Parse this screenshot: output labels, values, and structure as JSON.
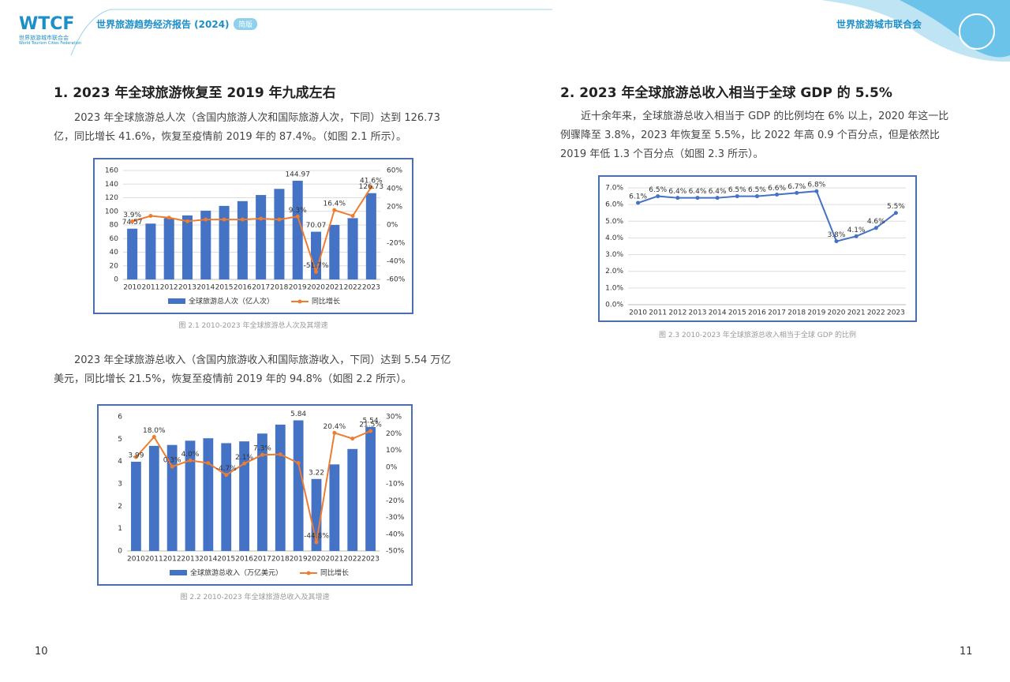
{
  "header": {
    "logo": "WTCF",
    "logo_cn": "世界旅游城市联合会",
    "logo_en": "World Tourism Cities Federation",
    "report": "世界旅游趋势经济报告 (2024)",
    "badge": "简版",
    "org": "世界旅游城市联合会"
  },
  "sections": [
    {
      "heading": "1. 2023 年全球旅游恢复至 2019 年九成左右",
      "paragraphs": [
        "2023 年全球旅游总人次（含国内旅游人次和国际旅游人次，下同）达到 126.73 亿，同比增长 41.6%，恢复至疫情前 2019 年的 87.4%。（如图 2.1 所示）。",
        "2023 年全球旅游总收入（含国内旅游收入和国际旅游收入，下同）达到 5.54 万亿美元，同比增长 21.5%，恢复至疫情前 2019 年的 94.8%（如图 2.2 所示）。"
      ]
    },
    {
      "heading": "2. 2023 年全球旅游总收入相当于全球 GDP 的 5.5%",
      "paragraphs": [
        "近十余年来，全球旅游总收入相当于 GDP 的比例均在 6% 以上，2020 年这一比例骤降至 3.8%，2023 年恢复至 5.5%，比 2022 年高 0.9 个百分点，但是依然比 2019 年低 1.3 个百分点（如图 2.3 所示）。"
      ]
    }
  ],
  "chart_data": [
    {
      "type": "combo",
      "caption": "图 2.1 2010-2023 年全球旅游总人次及其增速",
      "categories": [
        "2010",
        "2011",
        "2012",
        "2013",
        "2014",
        "2015",
        "2016",
        "2017",
        "2018",
        "2019",
        "2020",
        "2021",
        "2022",
        "2023"
      ],
      "series": [
        {
          "name": "全球旅游总人次（亿人次）",
          "type": "bar",
          "color": "#4472c4",
          "values": [
            74.57,
            82,
            90,
            94,
            101,
            108,
            115,
            124,
            133,
            144.97,
            70.07,
            80,
            90,
            126.73
          ],
          "value_labels": [
            "74.57",
            null,
            null,
            null,
            null,
            null,
            null,
            null,
            null,
            "144.97",
            "70.07",
            null,
            null,
            "126.73"
          ]
        },
        {
          "name": "同比增长",
          "type": "line",
          "axis": "y2",
          "color": "#ed7d31",
          "values": [
            3.9,
            10,
            8,
            4,
            6,
            6,
            6,
            7,
            6,
            9.3,
            -51.7,
            16.4,
            10,
            41.6
          ],
          "value_labels": [
            "3.9%",
            null,
            null,
            null,
            null,
            null,
            null,
            null,
            null,
            "9.3%",
            "-51.7%",
            "16.4%",
            null,
            "41.6%"
          ]
        }
      ],
      "ylim": [
        0,
        160
      ],
      "yticks": [
        0,
        20,
        40,
        60,
        80,
        100,
        120,
        140,
        160
      ],
      "y2lim": [
        -60,
        60
      ],
      "y2ticks": [
        {
          "value": -60,
          "label": "-60%"
        },
        {
          "value": -40,
          "label": "-40%"
        },
        {
          "value": -20,
          "label": "-20%"
        },
        {
          "value": 0,
          "label": "0%"
        },
        {
          "value": 20,
          "label": "20%"
        },
        {
          "value": 40,
          "label": "40%"
        },
        {
          "value": 60,
          "label": "60%"
        }
      ],
      "grid": true,
      "legend": "bottom"
    },
    {
      "type": "combo",
      "caption": "图 2.2 2010-2023 年全球旅游总收入及其增速",
      "categories": [
        "2010",
        "2011",
        "2012",
        "2013",
        "2014",
        "2015",
        "2016",
        "2017",
        "2018",
        "2019",
        "2020",
        "2021",
        "2022",
        "2023"
      ],
      "series": [
        {
          "name": "全球旅游总收入（万亿美元）",
          "type": "bar",
          "color": "#4472c4",
          "values": [
            3.99,
            4.7,
            4.74,
            4.93,
            5.04,
            4.82,
            4.9,
            5.25,
            5.65,
            5.84,
            3.22,
            3.87,
            4.56,
            5.54
          ],
          "value_labels": [
            "3.99",
            null,
            null,
            null,
            null,
            null,
            null,
            null,
            null,
            "5.84",
            "3.22",
            null,
            null,
            "5.54"
          ]
        },
        {
          "name": "同比增长",
          "type": "line",
          "axis": "y2",
          "color": "#ed7d31",
          "values": [
            6,
            18.0,
            0.3,
            4.0,
            2.4,
            -4.7,
            2.1,
            7.3,
            7.6,
            2.4,
            -44.8,
            20.4,
            17,
            21.5
          ],
          "value_labels": [
            null,
            "18.0%",
            "0.3%",
            "4.0%",
            null,
            "-4.7%",
            "2.1%",
            "7.3%",
            null,
            null,
            "-44.8%",
            "20.4%",
            null,
            "21.5%"
          ]
        }
      ],
      "ylim": [
        0,
        6
      ],
      "yticks": [
        0,
        1,
        2,
        3,
        4,
        5,
        6
      ],
      "y2lim": [
        -50,
        30
      ],
      "y2ticks": [
        {
          "value": -50,
          "label": "-50%"
        },
        {
          "value": -40,
          "label": "-40%"
        },
        {
          "value": -30,
          "label": "-30%"
        },
        {
          "value": -20,
          "label": "-20%"
        },
        {
          "value": -10,
          "label": "-10%"
        },
        {
          "value": 0,
          "label": "0%"
        },
        {
          "value": 10,
          "label": "10%"
        },
        {
          "value": 20,
          "label": "20%"
        },
        {
          "value": 30,
          "label": "30%"
        }
      ],
      "grid": false,
      "legend": "bottom"
    },
    {
      "type": "line",
      "caption": "图 2.3 2010-2023 年全球旅游总收入相当于全球 GDP 的比例",
      "categories": [
        "2010",
        "2011",
        "2012",
        "2013",
        "2014",
        "2015",
        "2016",
        "2017",
        "2018",
        "2019",
        "2020",
        "2021",
        "2022",
        "2023"
      ],
      "series": [
        {
          "type": "line",
          "color": "#4472c4",
          "values": [
            6.1,
            6.5,
            6.4,
            6.4,
            6.4,
            6.5,
            6.5,
            6.6,
            6.7,
            6.8,
            3.8,
            4.1,
            4.6,
            5.5
          ],
          "value_labels": [
            "6.1%",
            "6.5%",
            "6.4%",
            "6.4%",
            "6.4%",
            "6.5%",
            "6.5%",
            "6.6%",
            "6.7%",
            "6.8%",
            "3.8%",
            "4.1%",
            "4.6%",
            "5.5%"
          ]
        }
      ],
      "ylim": [
        0,
        7
      ],
      "yticks": [
        {
          "value": 0,
          "label": "0.0%"
        },
        {
          "value": 1,
          "label": "1.0%"
        },
        {
          "value": 2,
          "label": "2.0%"
        },
        {
          "value": 3,
          "label": "3.0%"
        },
        {
          "value": 4,
          "label": "4.0%"
        },
        {
          "value": 5,
          "label": "5.0%"
        },
        {
          "value": 6,
          "label": "6.0%"
        },
        {
          "value": 7,
          "label": "7.0%"
        }
      ],
      "grid": true
    }
  ],
  "footer": {
    "left_page": "10",
    "right_page": "11"
  }
}
